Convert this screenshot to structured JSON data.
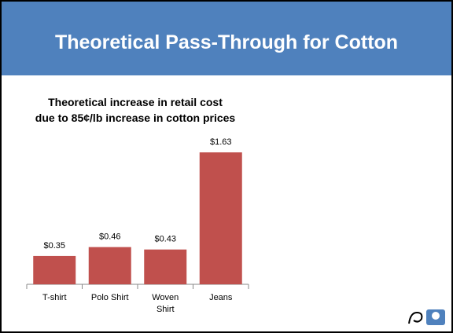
{
  "header": {
    "title": "Theoretical Pass-Through for Cotton"
  },
  "chart_data": {
    "type": "bar",
    "title": "Theoretical increase in retail cost\ndue to 85¢/lb  increase in cotton prices",
    "categories": [
      "T-shirt",
      "Polo Shirt",
      "Woven Shirt",
      "Jeans"
    ],
    "values": [
      0.35,
      0.46,
      0.43,
      1.63
    ],
    "value_labels": [
      "$0.35",
      "$0.46",
      "$0.43",
      "$1.63"
    ],
    "color": "#c0504d"
  }
}
